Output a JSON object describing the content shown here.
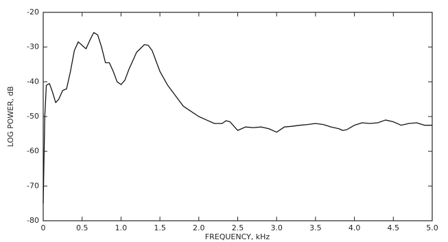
{
  "chart_data": {
    "type": "line",
    "x_label": "FREQUENCY, kHz",
    "y_label": "LOG POWER, dB",
    "xlim": [
      0,
      5
    ],
    "ylim": [
      -80,
      -20
    ],
    "xticks": [
      0,
      0.5,
      {
        "value": 1,
        "label": "1.0"
      },
      1.5,
      {
        "value": 2,
        "label": "2.0"
      },
      2.5,
      {
        "value": 3,
        "label": "3.0"
      },
      3.5,
      {
        "value": 4,
        "label": "4.0"
      },
      4.5,
      {
        "value": 5,
        "label": "5.0"
      }
    ],
    "yticks": [
      -80,
      -70,
      -60,
      -50,
      -40,
      -30,
      -20
    ],
    "color": "#111111",
    "x": [
      0,
      0.02,
      0.04,
      0.08,
      0.12,
      0.16,
      0.2,
      0.25,
      0.3,
      0.35,
      0.4,
      0.45,
      0.5,
      0.55,
      0.6,
      0.65,
      0.7,
      0.75,
      0.8,
      0.85,
      0.9,
      0.95,
      1.0,
      1.05,
      1.1,
      1.2,
      1.3,
      1.35,
      1.4,
      1.5,
      1.6,
      1.7,
      1.8,
      1.9,
      2.0,
      2.1,
      2.2,
      2.3,
      2.35,
      2.4,
      2.5,
      2.55,
      2.6,
      2.7,
      2.8,
      2.9,
      3.0,
      3.1,
      3.2,
      3.3,
      3.4,
      3.5,
      3.6,
      3.7,
      3.8,
      3.85,
      3.9,
      4.0,
      4.1,
      4.2,
      4.3,
      4.4,
      4.5,
      4.6,
      4.7,
      4.8,
      4.9,
      5.0
    ],
    "values": [
      -75,
      -50,
      -41,
      -40.5,
      -43,
      -46,
      -45,
      -42.5,
      -42,
      -37,
      -31,
      -28.5,
      -29.5,
      -30.5,
      -28,
      -25.8,
      -26.5,
      -30,
      -34.5,
      -34.5,
      -37,
      -40,
      -40.8,
      -39.5,
      -36.5,
      -31.5,
      -29.3,
      -29.5,
      -31,
      -37,
      -41,
      -44,
      -47,
      -48.5,
      -50,
      -51,
      -52,
      -52,
      -51.2,
      -51.5,
      -54,
      -53.5,
      -53,
      -53.2,
      -53,
      -53.5,
      -54.5,
      -53,
      -52.8,
      -52.5,
      -52.3,
      -52,
      -52.3,
      -53,
      -53.5,
      -54,
      -53.8,
      -52.5,
      -51.8,
      -52,
      -51.8,
      -51,
      -51.5,
      -52.5,
      -52,
      -51.8,
      -52.5,
      -52.5
    ]
  }
}
